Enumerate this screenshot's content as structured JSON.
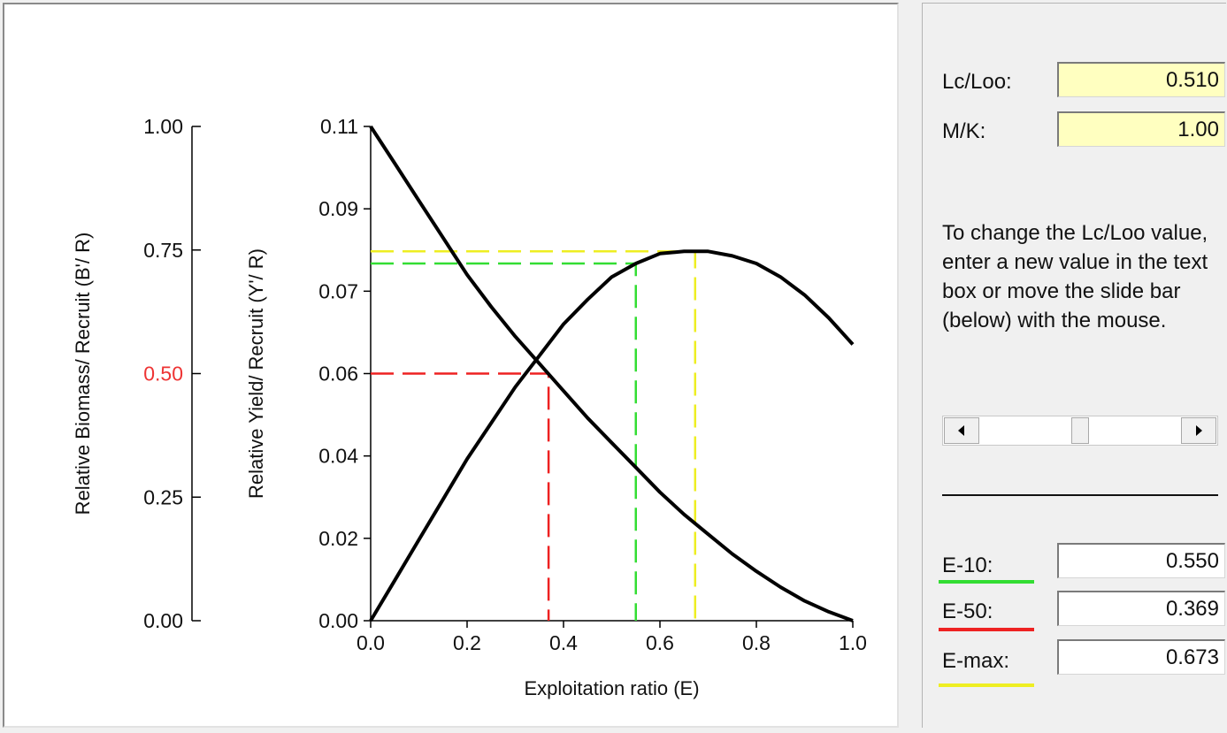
{
  "colors": {
    "e10": "#33dd33",
    "e50": "#ee2222",
    "emax": "#eeee22",
    "half_label": "#ee3333",
    "input_bg": "#ffffc0"
  },
  "params": {
    "lc_loo_label": "Lc/Loo:",
    "lc_loo_value": "0.510",
    "mk_label": "M/K:",
    "mk_value": "1.00"
  },
  "help_text": "To change the Lc/Loo value, enter a new value in the text box or move the slide bar (below) with the mouse.",
  "slider": {
    "left_icon": "arrow-left-icon",
    "right_icon": "arrow-right-icon",
    "position": 0.5
  },
  "results": [
    {
      "label": "E-10:",
      "value": "0.550",
      "color": "#33dd33"
    },
    {
      "label": "E-50:",
      "value": "0.369",
      "color": "#ee2222"
    },
    {
      "label": "E-max:",
      "value": "0.673",
      "color": "#eeee22"
    }
  ],
  "chart_data": {
    "type": "line",
    "xlabel": "Exploitation ratio (E)",
    "x_ticks": [
      "0.0",
      "0.2",
      "0.4",
      "0.6",
      "0.8",
      "1.0"
    ],
    "xlim": [
      0,
      1
    ],
    "y_left": {
      "label": "Relative Biomass/ Recruit (B'/ R)",
      "ticks": [
        "0.00",
        "0.25",
        "0.50",
        "0.75",
        "1.00"
      ],
      "lim": [
        0,
        1
      ]
    },
    "y_right": {
      "label": "Relative Yield/ Recruit (Y'/ R)",
      "ticks": [
        "0.00",
        "0.02",
        "0.04",
        "0.06",
        "0.07",
        "0.09",
        "0.11"
      ],
      "lim": [
        0,
        0.11
      ]
    },
    "series": [
      {
        "axis": "yield",
        "x": [
          0,
          0.05,
          0.1,
          0.15,
          0.2,
          0.25,
          0.3,
          0.35,
          0.4,
          0.45,
          0.5,
          0.55,
          0.6,
          0.65,
          0.7,
          0.75,
          0.8,
          0.85,
          0.9,
          0.95,
          1.0
        ],
        "y": [
          0,
          0.009,
          0.018,
          0.027,
          0.036,
          0.044,
          0.052,
          0.059,
          0.066,
          0.0715,
          0.0765,
          0.0795,
          0.0817,
          0.0822,
          0.0822,
          0.0812,
          0.0795,
          0.0765,
          0.0725,
          0.0674,
          0.0615
        ]
      },
      {
        "axis": "biomass",
        "x": [
          0,
          0.05,
          0.1,
          0.15,
          0.2,
          0.25,
          0.3,
          0.35,
          0.4,
          0.45,
          0.5,
          0.55,
          0.6,
          0.65,
          0.7,
          0.75,
          0.8,
          0.85,
          0.9,
          0.95,
          1.0
        ],
        "y": [
          1.0,
          0.925,
          0.85,
          0.775,
          0.7,
          0.635,
          0.575,
          0.52,
          0.465,
          0.41,
          0.36,
          0.31,
          0.26,
          0.215,
          0.175,
          0.135,
          0.1,
          0.068,
          0.04,
          0.018,
          0.0
        ]
      }
    ],
    "reference_lines": [
      {
        "name": "E-50",
        "x": 0.369,
        "axis": "biomass",
        "y": 0.5
      },
      {
        "name": "E-10",
        "x": 0.55,
        "axis": "yield",
        "y": 0.0795
      },
      {
        "name": "E-max",
        "x": 0.673,
        "axis": "yield",
        "y": 0.0822
      }
    ]
  }
}
